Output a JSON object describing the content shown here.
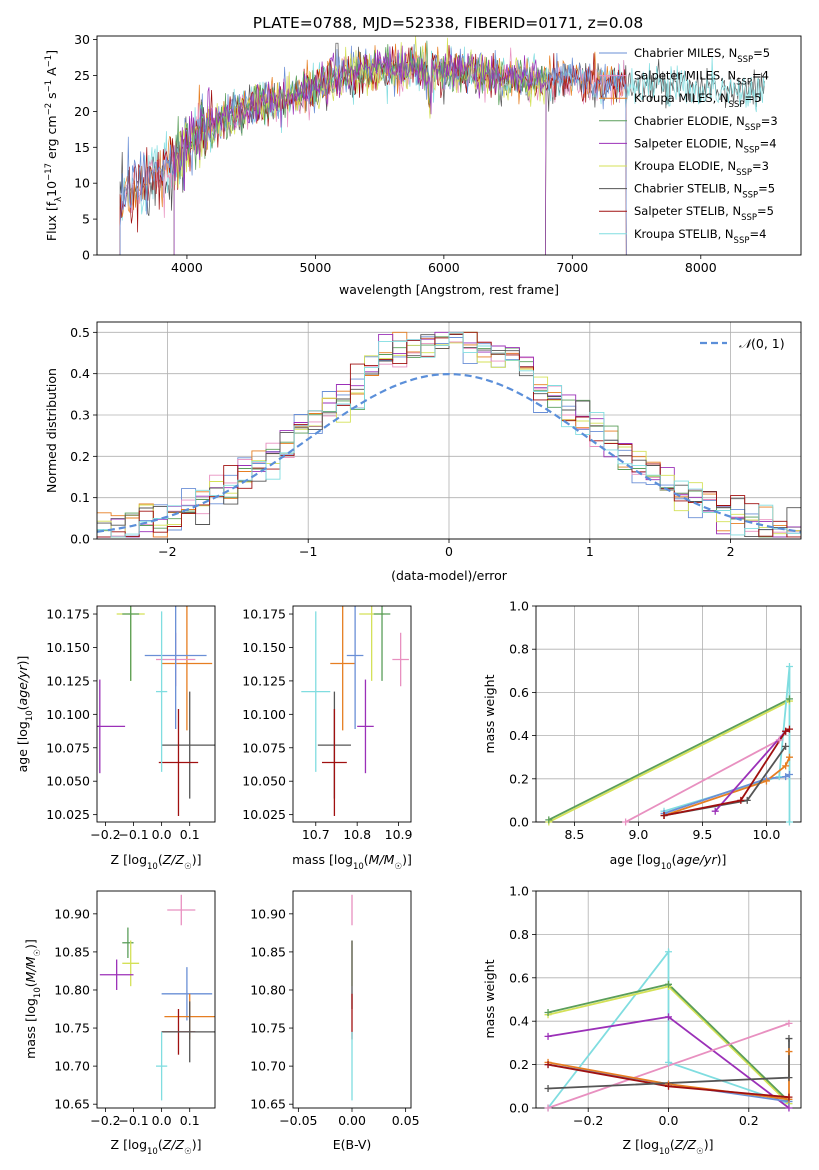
{
  "title": "PLATE=0788, MJD=52338, FIBERID=0171, z=0.08",
  "colors": {
    "chabrier_miles": "#6a8fd6",
    "salpeter_miles": "#e890c0",
    "kroupa_miles": "#e67e22",
    "chabrier_elodie": "#5a9e5a",
    "salpeter_elodie": "#9b30b8",
    "kroupa_elodie": "#d4e157",
    "chabrier_stelib": "#555555",
    "salpeter_stelib": "#a01010",
    "kroupa_stelib": "#80dde0",
    "normal_curve": "#5b8fd9"
  },
  "chart_data": [
    {
      "type": "line",
      "panel": "spectrum",
      "title": "PLATE=0788, MJD=52338, FIBERID=0171, z=0.08",
      "xlabel": "wavelength [Angstrom, rest frame]",
      "ylabel_parts": [
        "Flux [f",
        "λ",
        "10",
        "−17",
        " erg cm",
        "−2",
        " s",
        "−1",
        " A",
        "−1",
        "]"
      ],
      "xlim": [
        3300,
        8780
      ],
      "ylim": [
        0,
        30.5
      ],
      "xticks": [
        4000,
        5000,
        6000,
        7000,
        8000
      ],
      "yticks": [
        0,
        5,
        10,
        15,
        20,
        25,
        30
      ],
      "grid": false,
      "legend_position": "top-right",
      "legend": [
        {
          "name": "Chabrier MILES, N",
          "sub": "SSP",
          "tail": "=5",
          "color": "#6a8fd6"
        },
        {
          "name": "Salpeter MILES, N",
          "sub": "SSP",
          "tail": "=4",
          "color": "#e890c0"
        },
        {
          "name": "Kroupa MILES, N",
          "sub": "SSP",
          "tail": "=5",
          "color": "#e67e22"
        },
        {
          "name": "Chabrier ELODIE, N",
          "sub": "SSP",
          "tail": "=3",
          "color": "#5a9e5a"
        },
        {
          "name": "Salpeter ELODIE, N",
          "sub": "SSP",
          "tail": "=4",
          "color": "#9b30b8"
        },
        {
          "name": "Kroupa ELODIE, N",
          "sub": "SSP",
          "tail": "=3",
          "color": "#d4e157"
        },
        {
          "name": "Chabrier STELIB, N",
          "sub": "SSP",
          "tail": "=5",
          "color": "#555555"
        },
        {
          "name": "Salpeter STELIB, N",
          "sub": "SSP",
          "tail": "=5",
          "color": "#a01010"
        },
        {
          "name": "Kroupa STELIB, N",
          "sub": "SSP",
          "tail": "=4",
          "color": "#80dde0"
        }
      ],
      "continuum": {
        "x": [
          3480,
          3600,
          3750,
          3900,
          4000,
          4100,
          4200,
          4350,
          4500,
          4700,
          4900,
          5000,
          5200,
          5400,
          5600,
          5800,
          6000,
          6200,
          6400,
          6600,
          6800,
          7000,
          7200,
          7400,
          7600,
          7800,
          8000,
          8200,
          8400,
          8500
        ],
        "y": [
          8,
          9.5,
          11,
          12.5,
          15.5,
          17,
          18,
          19.5,
          20.5,
          21.5,
          22.5,
          23.5,
          25,
          25.5,
          26,
          26,
          25.5,
          25.5,
          25,
          24.5,
          24.5,
          24.5,
          24,
          24,
          23.8,
          23.5,
          23.3,
          23,
          22.8,
          22.5
        ]
      },
      "series": [
        {
          "label": "Chabrier STELIB",
          "color": "#555555",
          "x_range": [
            3480,
            8500
          ],
          "drop_at": 3480
        },
        {
          "label": "Kroupa STELIB",
          "color": "#80dde0",
          "x_range": [
            3480,
            8500
          ],
          "drop_at": 3480
        },
        {
          "label": "Kroupa MILES",
          "color": "#e67e22",
          "x_range": [
            3480,
            7420
          ],
          "drop_at": 7420
        },
        {
          "label": "Salpeter MILES",
          "color": "#e890c0",
          "x_range": [
            3480,
            7420
          ],
          "drop_at": 7420
        },
        {
          "label": "Salpeter STELIB",
          "color": "#a01010",
          "x_range": [
            3480,
            7420
          ],
          "drop_at": 7420
        },
        {
          "label": "Chabrier MILES",
          "color": "#6a8fd6",
          "x_range": [
            3480,
            7420
          ],
          "drop_at": 7420
        },
        {
          "label": "Kroupa ELODIE",
          "color": "#d4e157",
          "x_range": [
            3900,
            6800
          ],
          "drop_at": 6790
        },
        {
          "label": "Chabrier ELODIE",
          "color": "#5a9e5a",
          "x_range": [
            3900,
            6800
          ],
          "drop_at": 6790
        },
        {
          "label": "Salpeter ELODIE",
          "color": "#9b30b8",
          "x_range": [
            3900,
            6800
          ],
          "drop_at": 6790
        }
      ]
    },
    {
      "type": "histogram",
      "panel": "residuals",
      "xlabel": "(data-model)/error",
      "ylabel": "Normed distribution",
      "xlim": [
        -2.5,
        2.5
      ],
      "ylim": [
        0,
        0.525
      ],
      "xticks": [
        -2,
        -1,
        0,
        1,
        2
      ],
      "yticks": [
        0.0,
        0.1,
        0.2,
        0.3,
        0.4,
        0.5
      ],
      "grid": true,
      "legend_position": "top-right",
      "legend": [
        {
          "name": "N(0,1)",
          "style": "dashed",
          "color": "#5b8fd9"
        }
      ],
      "bin_width": 0.1,
      "series_colors": [
        "#6a8fd6",
        "#e890c0",
        "#e67e22",
        "#5a9e5a",
        "#9b30b8",
        "#d4e157",
        "#555555",
        "#a01010",
        "#80dde0"
      ]
    },
    {
      "type": "scatter",
      "panel": "age-vs-Z",
      "xlabel": "Z [log10(Z/Z☉)]",
      "ylabel": "age  [log10(age/yr)]",
      "xlim": [
        -0.23,
        0.19
      ],
      "ylim": [
        10.0195,
        10.181
      ],
      "xticks": [
        -0.2,
        -0.1,
        0.0,
        0.1
      ],
      "yticks": [
        10.025,
        10.05,
        10.075,
        10.1,
        10.125,
        10.15,
        10.175
      ],
      "points": [
        {
          "x": -0.11,
          "y": 10.175,
          "xerr": 0.05,
          "yerr": 0.05,
          "color": "#d4e157"
        },
        {
          "x": -0.11,
          "y": 10.175,
          "xerr": 0.03,
          "yerr": 0.05,
          "color": "#5a9e5a"
        },
        {
          "x": -0.22,
          "y": 10.091,
          "xerr": 0.09,
          "yerr": 0.035,
          "color": "#9b30b8"
        },
        {
          "x": 0.1,
          "y": 10.077,
          "xerr": 0.1,
          "yerr": 0.04,
          "color": "#555555"
        },
        {
          "x": 0.06,
          "y": 10.064,
          "xerr": 0.07,
          "yerr": 0.04,
          "color": "#a01010"
        },
        {
          "x": 0.09,
          "y": 10.138,
          "xerr": 0.09,
          "yerr": 0.05,
          "color": "#e67e22"
        },
        {
          "x": 0.05,
          "y": 10.141,
          "xerr": 0.07,
          "yerr": 0.02,
          "color": "#e890c0"
        },
        {
          "x": 0.05,
          "y": 10.144,
          "xerr": 0.11,
          "yerr": 0.055,
          "color": "#6a8fd6"
        },
        {
          "x": 0.0,
          "y": 10.117,
          "xerr": 0.02,
          "yerr": 0.06,
          "color": "#80dde0"
        }
      ]
    },
    {
      "type": "scatter",
      "panel": "age-vs-mass",
      "xlabel": "mass [log10(M/M☉)]",
      "ylabel": "",
      "xlim": [
        10.645,
        10.93
      ],
      "ylim": [
        10.0195,
        10.181
      ],
      "xticks": [
        10.7,
        10.8,
        10.9
      ],
      "yticks": [
        10.025,
        10.05,
        10.075,
        10.1,
        10.125,
        10.15,
        10.175
      ],
      "points": [
        {
          "x": 10.835,
          "y": 10.175,
          "xerr": 0.03,
          "yerr": 0.05,
          "color": "#d4e157"
        },
        {
          "x": 10.86,
          "y": 10.175,
          "xerr": 0.02,
          "yerr": 0.05,
          "color": "#5a9e5a"
        },
        {
          "x": 10.82,
          "y": 10.091,
          "xerr": 0.02,
          "yerr": 0.035,
          "color": "#9b30b8"
        },
        {
          "x": 10.745,
          "y": 10.077,
          "xerr": 0.04,
          "yerr": 0.04,
          "color": "#555555"
        },
        {
          "x": 10.745,
          "y": 10.064,
          "xerr": 0.03,
          "yerr": 0.04,
          "color": "#a01010"
        },
        {
          "x": 10.765,
          "y": 10.138,
          "xerr": 0.03,
          "yerr": 0.05,
          "color": "#e67e22"
        },
        {
          "x": 10.905,
          "y": 10.141,
          "xerr": 0.02,
          "yerr": 0.02,
          "color": "#e890c0"
        },
        {
          "x": 10.795,
          "y": 10.144,
          "xerr": 0.02,
          "yerr": 0.055,
          "color": "#6a8fd6"
        },
        {
          "x": 10.7,
          "y": 10.117,
          "xerr": 0.035,
          "yerr": 0.06,
          "color": "#80dde0"
        }
      ]
    },
    {
      "type": "line",
      "panel": "mass-weight-vs-age",
      "xlabel": "age  [log10(age/yr)]",
      "ylabel": "mass weight",
      "xlim": [
        8.2,
        10.27
      ],
      "ylim": [
        0,
        1.0
      ],
      "xticks": [
        8.5,
        9.0,
        9.5,
        10.0
      ],
      "yticks": [
        0.0,
        0.2,
        0.4,
        0.6,
        0.8,
        1.0
      ],
      "grid": true,
      "series": [
        {
          "color": "#d4e157",
          "x": [
            8.3,
            10.18
          ],
          "y": [
            0.0,
            0.56
          ]
        },
        {
          "color": "#5a9e5a",
          "x": [
            8.3,
            10.18
          ],
          "y": [
            0.01,
            0.57
          ]
        },
        {
          "color": "#e890c0",
          "x": [
            8.9,
            10.1
          ],
          "y": [
            0.0,
            0.38
          ]
        },
        {
          "color": "#80dde0",
          "x": [
            9.2,
            10.1,
            10.18,
            10.18
          ],
          "y": [
            0.05,
            0.21,
            0.72,
            0.0
          ]
        },
        {
          "color": "#6a8fd6",
          "x": [
            9.2,
            10.0,
            10.15,
            10.18
          ],
          "y": [
            0.04,
            0.2,
            0.21,
            0.22
          ]
        },
        {
          "color": "#e67e22",
          "x": [
            9.2,
            10.0,
            10.15,
            10.18
          ],
          "y": [
            0.03,
            0.19,
            0.26,
            0.3
          ]
        },
        {
          "color": "#555555",
          "x": [
            9.2,
            9.85,
            10.15
          ],
          "y": [
            0.03,
            0.1,
            0.35
          ]
        },
        {
          "color": "#9b30b8",
          "x": [
            9.6,
            10.15
          ],
          "y": [
            0.05,
            0.42
          ]
        },
        {
          "color": "#a01010",
          "x": [
            9.2,
            9.8,
            10.15,
            10.18
          ],
          "y": [
            0.03,
            0.1,
            0.42,
            0.43
          ]
        }
      ]
    },
    {
      "type": "scatter",
      "panel": "mass-vs-Z",
      "xlabel": "Z [log10(Z/Z☉)]",
      "ylabel": "mass [log10(M/M☉)]",
      "xlim": [
        -0.23,
        0.19
      ],
      "ylim": [
        10.645,
        10.93
      ],
      "xticks": [
        -0.2,
        -0.1,
        0.0,
        0.1
      ],
      "yticks": [
        10.65,
        10.7,
        10.75,
        10.8,
        10.85,
        10.9
      ],
      "points": [
        {
          "x": 0.07,
          "y": 10.905,
          "xerr": 0.05,
          "yerr": 0.02,
          "color": "#e890c0"
        },
        {
          "x": -0.12,
          "y": 10.862,
          "xerr": 0.02,
          "yerr": 0.02,
          "color": "#5a9e5a"
        },
        {
          "x": -0.11,
          "y": 10.835,
          "xerr": 0.03,
          "yerr": 0.03,
          "color": "#d4e157"
        },
        {
          "x": -0.16,
          "y": 10.82,
          "xerr": 0.06,
          "yerr": 0.02,
          "color": "#9b30b8"
        },
        {
          "x": 0.09,
          "y": 10.795,
          "xerr": 0.09,
          "yerr": 0.035,
          "color": "#6a8fd6"
        },
        {
          "x": 0.1,
          "y": 10.765,
          "xerr": 0.09,
          "yerr": 0.03,
          "color": "#e67e22"
        },
        {
          "x": 0.06,
          "y": 10.745,
          "xerr": 0.06,
          "yerr": 0.03,
          "color": "#a01010"
        },
        {
          "x": 0.1,
          "y": 10.745,
          "xerr": 0.1,
          "yerr": 0.04,
          "color": "#555555"
        },
        {
          "x": 0.0,
          "y": 10.7,
          "xerr": 0.02,
          "yerr": 0.045,
          "color": "#80dde0"
        }
      ]
    },
    {
      "type": "scatter",
      "panel": "mass-vs-ebv",
      "xlabel": "E(B-V)",
      "ylabel": "",
      "xlim": [
        -0.055,
        0.055
      ],
      "ylim": [
        10.645,
        10.93
      ],
      "xticks": [
        -0.05,
        0.0,
        0.05
      ],
      "yticks": [
        10.65,
        10.7,
        10.75,
        10.8,
        10.85,
        10.9
      ],
      "points": [
        {
          "x": 0.0,
          "y": 10.905,
          "yerr": 0.02,
          "color": "#e890c0"
        },
        {
          "x": 0.0,
          "y": 10.835,
          "yerr": 0.03,
          "color": "#d4e157"
        },
        {
          "x": 0.0,
          "y": 10.82,
          "yerr": 0.045,
          "color": "#555555"
        },
        {
          "x": 0.0,
          "y": 10.765,
          "yerr": 0.03,
          "color": "#a01010"
        },
        {
          "x": 0.0,
          "y": 10.7,
          "yerr": 0.045,
          "color": "#80dde0"
        }
      ]
    },
    {
      "type": "line",
      "panel": "mass-weight-vs-Z",
      "xlabel": "Z [log10(Z/Z☉)]",
      "ylabel": "mass weight",
      "xlim": [
        -0.33,
        0.33
      ],
      "ylim": [
        0,
        1.0
      ],
      "xticks": [
        -0.2,
        0.0,
        0.2
      ],
      "yticks": [
        0.0,
        0.2,
        0.4,
        0.6,
        0.8,
        1.0
      ],
      "grid": true,
      "series": [
        {
          "color": "#80dde0",
          "x": [
            -0.3,
            0.0,
            0.0,
            0.3
          ],
          "y": [
            0.0,
            0.72,
            0.21,
            0.02
          ]
        },
        {
          "color": "#d4e157",
          "x": [
            -0.3,
            0.0,
            0.3
          ],
          "y": [
            0.43,
            0.56,
            0.02
          ]
        },
        {
          "color": "#5a9e5a",
          "x": [
            -0.3,
            0.0,
            0.3
          ],
          "y": [
            0.44,
            0.57,
            0.03
          ]
        },
        {
          "color": "#9b30b8",
          "x": [
            -0.3,
            0.0,
            0.3
          ],
          "y": [
            0.33,
            0.42,
            0.0
          ]
        },
        {
          "color": "#e890c0",
          "x": [
            -0.3,
            0.3
          ],
          "y": [
            0.0,
            0.39
          ]
        },
        {
          "color": "#6a8fd6",
          "x": [
            -0.3,
            0.0,
            0.3
          ],
          "y": [
            0.2,
            0.11,
            0.03
          ]
        },
        {
          "color": "#e67e22",
          "x": [
            -0.3,
            0.0,
            0.3,
            0.3
          ],
          "y": [
            0.21,
            0.11,
            0.04,
            0.26
          ]
        },
        {
          "color": "#a01010",
          "x": [
            -0.3,
            0.0,
            0.3
          ],
          "y": [
            0.2,
            0.1,
            0.05
          ]
        },
        {
          "color": "#555555",
          "x": [
            -0.3,
            0.3,
            0.3
          ],
          "y": [
            0.09,
            0.14,
            0.32
          ]
        }
      ]
    }
  ]
}
